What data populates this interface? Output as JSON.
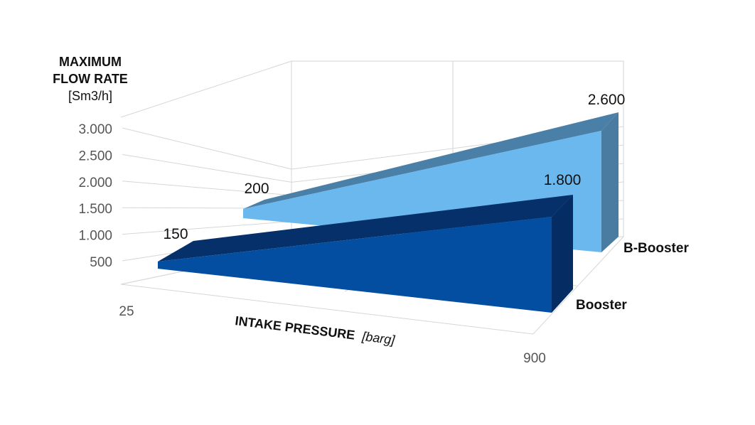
{
  "chart_data": {
    "type": "area",
    "subtype": "3d-area",
    "y_axis": {
      "title_lines": [
        "MAXIMUM",
        "FLOW RATE",
        "[Sm3/h]"
      ],
      "ticks": [
        "500",
        "1.000",
        "1.500",
        "2.000",
        "2.500",
        "3.000"
      ],
      "range": [
        0,
        3000
      ]
    },
    "x_axis": {
      "title_bold": "INTAKE PRESSURE",
      "title_unit": "[barg]",
      "ticks": [
        "25",
        "900"
      ],
      "range": [
        25,
        900
      ]
    },
    "grid": true,
    "series": [
      {
        "name": "B-Booster",
        "x": [
          25,
          900
        ],
        "values": [
          200,
          2600
        ],
        "value_labels": [
          "200",
          "2.600"
        ],
        "color": "#6bb8ee",
        "top_color": "#4a7fa7",
        "side_color": "#4a7ba1"
      },
      {
        "name": "Booster",
        "x": [
          25,
          900
        ],
        "values": [
          150,
          1800
        ],
        "value_labels": [
          "150",
          "1.800"
        ],
        "color": "#034ea0",
        "top_color": "#06306a",
        "side_color": "#062d63"
      }
    ]
  }
}
